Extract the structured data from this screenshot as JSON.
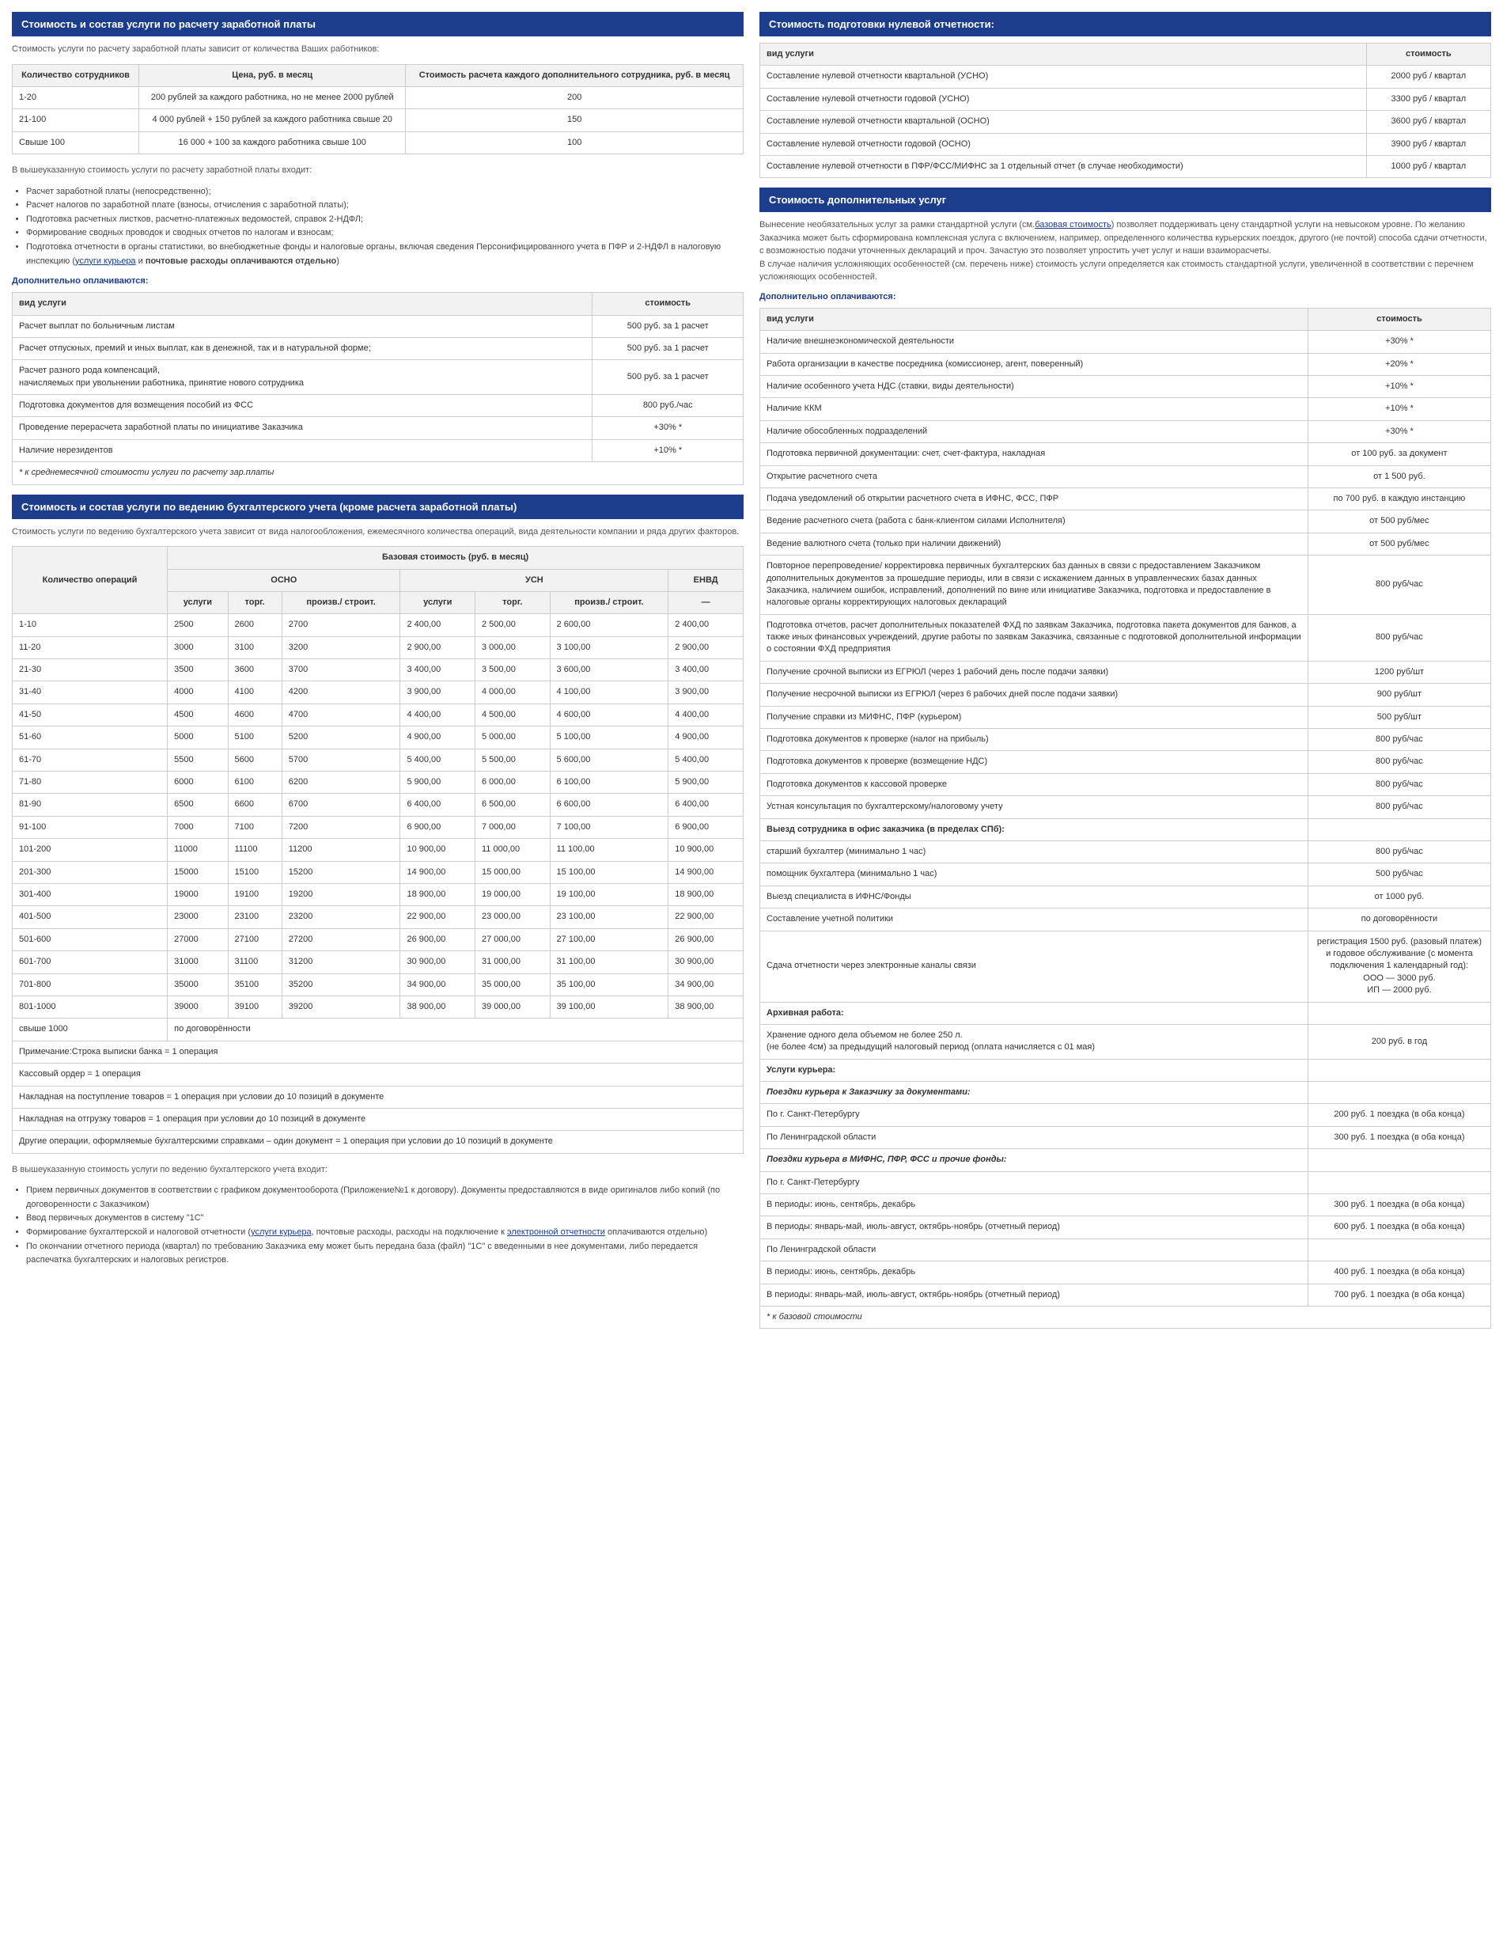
{
  "left": {
    "s1_title": "Стоимость и состав услуги по расчету заработной платы",
    "s1_intro": "Стоимость услуги по расчету заработной платы зависит от количества Ваших работников:",
    "s1_th1": "Количество сотрудников",
    "s1_th2": "Цена, руб. в месяц",
    "s1_th3": "Стоимость расчета каждого дополнительного сотрудника, руб. в месяц",
    "s1_rows": [
      {
        "c1": "1-20",
        "c2": "200 рублей за каждого работника, но не менее 2000 рублей",
        "c3": "200"
      },
      {
        "c1": "21-100",
        "c2": "4 000 рублей + 150 рублей за каждого работника свыше 20",
        "c3": "150"
      },
      {
        "c1": "Свыше 100",
        "c2": "16 000 + 100 за каждого работника свыше 100",
        "c3": "100"
      }
    ],
    "s1_after": "В вышеуказанную стоимость услуги по расчету заработной платы входит:",
    "s1_bullets": [
      "Расчет заработной платы (непосредственно);",
      "Расчет налогов по заработной плате (взносы, отчисления с заработной платы);",
      "Подготовка расчетных листков, расчетно-платежных ведомостей, справок 2-НДФЛ;",
      "Формирование сводных проводок и сводных отчетов по налогам и взносам;"
    ],
    "s1_bullet_last_a": "Подготовка отчетности в органы статистики, во внебюджетные фонды и налоговые органы, включая сведения Персонифицированного учета в ПФР и 2-НДФЛ в налоговую инспекцию (",
    "s1_bullet_last_link": "услуги курьера",
    "s1_bullet_last_b": " и ",
    "s1_bullet_last_bold": "почтовые расходы оплачиваются отдельно",
    "s1_bullet_last_c": ")",
    "s1_sub": "Дополнительно оплачиваются:",
    "s1b_th1": "вид услуги",
    "s1b_th2": "стоимость",
    "s1b_rows": [
      {
        "c1": "Расчет выплат по больничным листам",
        "c2": "500 руб. за 1 расчет"
      },
      {
        "c1": "Расчет отпускных, премий и иных выплат, как в денежной, так и в натуральной форме;",
        "c2": "500 руб. за 1 расчет"
      },
      {
        "c1": "Расчет разного рода компенсаций,\nначисляемых при увольнении работника, принятие нового сотрудника",
        "c2": "500 руб. за 1 расчет"
      },
      {
        "c1": "Подготовка документов для возмещения пособий из ФСС",
        "c2": "800 руб./час"
      },
      {
        "c1": "Проведение перерасчета заработной платы по инициативе Заказчика",
        "c2": "+30% *"
      },
      {
        "c1": "Наличие нерезидентов",
        "c2": "+10% *"
      }
    ],
    "s1b_note": "* к среднемесячной стоимости услуги по расчету зар.платы",
    "s2_title": "Стоимость и состав услуги по ведению бухгалтерского учета (кроме расчета заработной платы)",
    "s2_intro": "Стоимость услуги по ведению бухгалтерского учета зависит от вида налогообложения, ежемесячного количества операций, вида деятельности компании и ряда других факторов.",
    "s2_th_ops": "Количество операций",
    "s2_th_base": "Базовая стоимость (руб. в месяц)",
    "s2_th_osno": "ОСНО",
    "s2_th_usn": "УСН",
    "s2_th_envd": "ЕНВД",
    "s2_sub_usl": "услуги",
    "s2_sub_torg": "торг.",
    "s2_sub_proiz": "произв./ строит.",
    "s2_sub_dash": "—",
    "s2_rows": [
      {
        "o": "1-10",
        "v": [
          "2500",
          "2600",
          "2700",
          "2 400,00",
          "2 500,00",
          "2 600,00",
          "2 400,00"
        ]
      },
      {
        "o": "11-20",
        "v": [
          "3000",
          "3100",
          "3200",
          "2 900,00",
          "3 000,00",
          "3 100,00",
          "2 900,00"
        ]
      },
      {
        "o": "21-30",
        "v": [
          "3500",
          "3600",
          "3700",
          "3 400,00",
          "3 500,00",
          "3 600,00",
          "3 400,00"
        ]
      },
      {
        "o": "31-40",
        "v": [
          "4000",
          "4100",
          "4200",
          "3 900,00",
          "4 000,00",
          "4 100,00",
          "3 900,00"
        ]
      },
      {
        "o": "41-50",
        "v": [
          "4500",
          "4600",
          "4700",
          "4 400,00",
          "4 500,00",
          "4 600,00",
          "4 400,00"
        ]
      },
      {
        "o": "51-60",
        "v": [
          "5000",
          "5100",
          "5200",
          "4 900,00",
          "5 000,00",
          "5 100,00",
          "4 900,00"
        ]
      },
      {
        "o": "61-70",
        "v": [
          "5500",
          "5600",
          "5700",
          "5 400,00",
          "5 500,00",
          "5 600,00",
          "5 400,00"
        ]
      },
      {
        "o": "71-80",
        "v": [
          "6000",
          "6100",
          "6200",
          "5 900,00",
          "6 000,00",
          "6 100,00",
          "5 900,00"
        ]
      },
      {
        "o": "81-90",
        "v": [
          "6500",
          "6600",
          "6700",
          "6 400,00",
          "6 500,00",
          "6 600,00",
          "6 400,00"
        ]
      },
      {
        "o": "91-100",
        "v": [
          "7000",
          "7100",
          "7200",
          "6 900,00",
          "7 000,00",
          "7 100,00",
          "6 900,00"
        ]
      },
      {
        "o": "101-200",
        "v": [
          "11000",
          "11100",
          "11200",
          "10 900,00",
          "11 000,00",
          "11 100,00",
          "10 900,00"
        ]
      },
      {
        "o": "201-300",
        "v": [
          "15000",
          "15100",
          "15200",
          "14 900,00",
          "15 000,00",
          "15 100,00",
          "14 900,00"
        ]
      },
      {
        "o": "301-400",
        "v": [
          "19000",
          "19100",
          "19200",
          "18 900,00",
          "19 000,00",
          "19 100,00",
          "18 900,00"
        ]
      },
      {
        "o": "401-500",
        "v": [
          "23000",
          "23100",
          "23200",
          "22 900,00",
          "23 000,00",
          "23 100,00",
          "22 900,00"
        ]
      },
      {
        "o": "501-600",
        "v": [
          "27000",
          "27100",
          "27200",
          "26 900,00",
          "27 000,00",
          "27 100,00",
          "26 900,00"
        ]
      },
      {
        "o": "601-700",
        "v": [
          "31000",
          "31100",
          "31200",
          "30 900,00",
          "31 000,00",
          "31 100,00",
          "30 900,00"
        ]
      },
      {
        "o": "701-800",
        "v": [
          "35000",
          "35100",
          "35200",
          "34 900,00",
          "35 000,00",
          "35 100,00",
          "34 900,00"
        ]
      },
      {
        "o": "801-1000",
        "v": [
          "39000",
          "39100",
          "39200",
          "38 900,00",
          "39 000,00",
          "39 100,00",
          "38 900,00"
        ]
      }
    ],
    "s2_over1000_a": "свыше 1000",
    "s2_over1000_b": "по договорённости",
    "s2_footnotes": [
      "Примечание:Строка выписки банка = 1 операция",
      "Кассовый ордер = 1 операция",
      "Накладная на поступление товаров = 1 операция при условии до 10 позиций в документе",
      "Накладная на отгрузку товаров = 1 операция при условии до 10 позиций в документе",
      "Другие операции, оформляемые бухгалтерскими справками – один документ = 1 операция при условии до 10 позиций в документе"
    ],
    "s2_after": "В вышеуказанную стоимость услуги по ведению бухгалтерского учета входит:",
    "s2_bul1": "Прием первичных документов в соответствии с графиком документооборота (Приложение№1 к договору). Документы предоставляются в виде оригиналов либо копий (по договоренности с Заказчиком)",
    "s2_bul2": "Ввод первичных документов в систему \"1С\"",
    "s2_bul3a": "Формирование бухгалтерской и налоговой отчетности (",
    "s2_bul3_link1": "услуги курьера",
    "s2_bul3b": ", почтовые расходы, расходы на подключение к ",
    "s2_bul3_link2": "электронной отчетности",
    "s2_bul3c": " оплачиваются отдельно)",
    "s2_bul4": "По окончании отчетного периода (квартал) по требованию Заказчика ему может быть передана база (файл) \"1С\" с введенными в нее документами, либо передается распечатка бухгалтерских и налоговых регистров."
  },
  "right": {
    "s3_title": "Стоимость подготовки нулевой отчетности:",
    "s3_th1": "вид услуги",
    "s3_th2": "стоимость",
    "s3_rows": [
      {
        "c1": "Составление нулевой отчетности квартальной (УСНО)",
        "c2": "2000 руб / квартал"
      },
      {
        "c1": "Составление нулевой отчетности годовой (УСНО)",
        "c2": "3300 руб / квартал"
      },
      {
        "c1": "Составление нулевой отчетности квартальной (ОСНО)",
        "c2": "3600 руб / квартал"
      },
      {
        "c1": "Составление нулевой отчетности годовой (ОСНО)",
        "c2": "3900 руб / квартал"
      },
      {
        "c1": "Составление нулевой отчетности в ПФР/ФСС/МИФНС за 1 отдельный отчет (в случае необходимости)",
        "c2": "1000 руб / квартал"
      }
    ],
    "s4_title": "Стоимость дополнительных услуг",
    "s4_intro_a": "Вынесение необязательных услуг за рамки стандартной услуги (см.",
    "s4_intro_link": "базовая стоимость",
    "s4_intro_b": ") позволяет поддерживать цену стандартной услуги на невысоком уровне. По желанию Заказчика может быть сформирована комплексная услуга с включением, например, определенного количества курьерских поездок, другого (не почтой) способа сдачи отчетности, с возможностью подачи уточненных деклараций и проч. Зачастую это позволяет упростить учет услуг и наши взаиморасчеты.\nВ случае наличия усложняющих особенностей (см. перечень ниже) стоимость услуги определяется как стоимость стандартной услуги, увеличенной в соответствии с перечнем усложняющих особенностей.",
    "s4_sub": "Дополнительно оплачиваются:",
    "s4_th1": "вид услуги",
    "s4_th2": "стоимость",
    "rows": [
      {
        "t": "n",
        "c1": "Наличие внешнеэкономической деятельности",
        "c2": "+30% *"
      },
      {
        "t": "n",
        "c1": "Работа организации в качестве посредника (комиссионер, агент, поверенный)",
        "c2": "+20% *"
      },
      {
        "t": "n",
        "c1": "Наличие особенного учета НДС (ставки, виды деятельности)",
        "c2": "+10% *"
      },
      {
        "t": "n",
        "c1": "Наличие ККМ",
        "c2": "+10% *"
      },
      {
        "t": "n",
        "c1": "Наличие обособленных подразделений",
        "c2": "+30% *"
      },
      {
        "t": "n",
        "c1": "Подготовка первичной документации: счет, счет-фактура, накладная",
        "c2": "от 100 руб. за документ"
      },
      {
        "t": "n",
        "c1": "Открытие расчетного счета",
        "c2": "от 1 500 руб."
      },
      {
        "t": "n",
        "c1": "Подача уведомлений об открытии расчетного счета в ИФНС, ФСС, ПФР",
        "c2": "по 700 руб. в каждую инстанцию"
      },
      {
        "t": "n",
        "c1": "Ведение расчетного счета (работа с банк-клиентом силами Исполнителя)",
        "c2": "от 500 руб/мес"
      },
      {
        "t": "n",
        "c1": "Ведение валютного счета (только при наличии движений)",
        "c2": "от 500 руб/мес"
      },
      {
        "t": "n",
        "c1": "Повторное перепроведение/ корректировка первичных бухгалтерских баз данных в связи с предоставлением Заказчиком дополнительных документов за прошедшие периоды, или в связи с искажением данных в управленческих базах данных Заказчика, наличием ошибок, исправлений, дополнений по вине или инициативе Заказчика, подготовка и предоставление в налоговые органы корректирующих налоговых деклараций",
        "c2": "800 руб/час"
      },
      {
        "t": "n",
        "c1": "Подготовка отчетов, расчет дополнительных показателей ФХД по заявкам Заказчика, подготовка пакета документов для банков, а также иных финансовых учреждений, другие работы по заявкам Заказчика, связанные с подготовкой дополнительной информации о состоянии ФХД предприятия",
        "c2": "800 руб/час"
      },
      {
        "t": "n",
        "c1": "Получение срочной выписки из ЕГРЮЛ (через 1 рабочий день после подачи заявки)",
        "c2": "1200 руб/шт"
      },
      {
        "t": "n",
        "c1": "Получение несрочной выписки из ЕГРЮЛ (через 6 рабочих дней после подачи заявки)",
        "c2": "900 руб/шт"
      },
      {
        "t": "n",
        "c1": "Получение справки из МИФНС, ПФР (курьером)",
        "c2": "500 руб/шт"
      },
      {
        "t": "n",
        "c1": "Подготовка документов к проверке (налог на прибыль)",
        "c2": "800 руб/час"
      },
      {
        "t": "n",
        "c1": "Подготовка документов к проверке (возмещение НДС)",
        "c2": "800 руб/час"
      },
      {
        "t": "n",
        "c1": "Подготовка документов к кассовой проверке",
        "c2": "800 руб/час"
      },
      {
        "t": "n",
        "c1": "Устная консультация по бухгалтерскому/налоговому учету",
        "c2": "800 руб/час"
      },
      {
        "t": "b",
        "c1": "Выезд сотрудника в офис заказчика (в пределах СПб):",
        "c2": ""
      },
      {
        "t": "n",
        "c1": "старший бухгалтер (минимально 1 час)",
        "c2": "800 руб/час"
      },
      {
        "t": "n",
        "c1": "помощник бухгалтера (минимально 1 час)",
        "c2": "500 руб/час"
      },
      {
        "t": "n",
        "c1": "Выезд специалиста в ИФНС/Фонды",
        "c2": "от 1000 руб."
      },
      {
        "t": "n",
        "c1": "Составление учетной политики",
        "c2": "по договорённости"
      },
      {
        "t": "n",
        "c1": "Сдача отчетности через электронные каналы связи",
        "c2": "регистрация 1500 руб. (разовый платеж) и годовое обслуживание (с момента подключения 1 календарный год):\nООО — 3000 руб.\nИП — 2000 руб."
      },
      {
        "t": "b",
        "c1": "Архивная работа:",
        "c2": ""
      },
      {
        "t": "n",
        "c1": "Хранение одного дела объемом не более 250 л.\n(не более 4см) за предыдущий налоговый период (оплата начисляется с 01 мая)",
        "c2": "200 руб. в год"
      },
      {
        "t": "b",
        "c1": "Услуги курьера:",
        "c2": ""
      },
      {
        "t": "i",
        "c1": "Поездки курьера к Заказчику за документами:",
        "c2": ""
      },
      {
        "t": "n",
        "c1": "По г. Санкт-Петербургу",
        "c2": "200 руб. 1 поездка (в оба конца)"
      },
      {
        "t": "n",
        "c1": "По Ленинградской области",
        "c2": "300 руб. 1 поездка (в оба конца)"
      },
      {
        "t": "i",
        "c1": "Поездки курьера в МИФНС, ПФР, ФСС и прочие фонды:",
        "c2": ""
      },
      {
        "t": "n",
        "c1": "По г. Санкт-Петербургу",
        "c2": ""
      },
      {
        "t": "n",
        "c1": "В периоды: июнь, сентябрь, декабрь",
        "c2": "300 руб. 1 поездка (в оба конца)"
      },
      {
        "t": "n",
        "c1": "В периоды: январь-май, июль-август, октябрь-ноябрь (отчетный период)",
        "c2": "600 руб. 1 поездка (в оба конца)"
      },
      {
        "t": "n",
        "c1": "По Ленинградской области",
        "c2": ""
      },
      {
        "t": "n",
        "c1": "В периоды: июнь, сентябрь, декабрь",
        "c2": "400 руб. 1 поездка (в оба конца)"
      },
      {
        "t": "n",
        "c1": "В периоды: январь-май, июль-август, октябрь-ноябрь (отчетный период)",
        "c2": "700 руб. 1 поездка (в оба конца)"
      }
    ],
    "s4_footnote": "* к базовой стоимости"
  }
}
